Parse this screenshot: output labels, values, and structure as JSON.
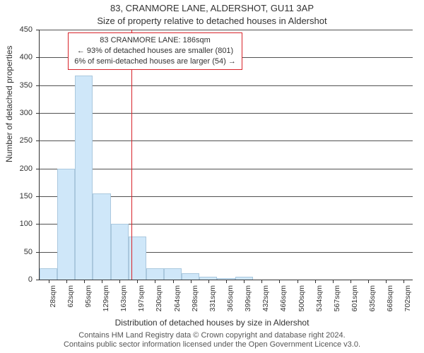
{
  "title": "83, CRANMORE LANE, ALDERSHOT, GU11 3AP",
  "subtitle": "Size of property relative to detached houses in Aldershot",
  "ylabel": "Number of detached properties",
  "xlabel": "Distribution of detached houses by size in Aldershot",
  "caption_line1": "Contains HM Land Registry data © Crown copyright and database right 2024.",
  "caption_line2": "Contains public sector information licensed under the Open Government Licence v3.0.",
  "chart": {
    "type": "histogram",
    "ylim": [
      0,
      450
    ],
    "yticks": [
      0,
      50,
      100,
      150,
      200,
      250,
      300,
      350,
      400,
      450
    ],
    "categories": [
      "28sqm",
      "62sqm",
      "95sqm",
      "129sqm",
      "163sqm",
      "197sqm",
      "230sqm",
      "264sqm",
      "298sqm",
      "331sqm",
      "365sqm",
      "399sqm",
      "432sqm",
      "466sqm",
      "500sqm",
      "534sqm",
      "567sqm",
      "601sqm",
      "635sqm",
      "668sqm",
      "702sqm"
    ],
    "values": [
      20,
      200,
      368,
      155,
      100,
      78,
      20,
      20,
      12,
      5,
      2,
      5,
      0,
      0,
      0,
      0,
      0,
      0,
      0,
      0,
      0
    ],
    "bar_fill": "#cfe7f9",
    "bar_stroke": "#aac8de",
    "grid_color": "#333333",
    "axis_color": "#333333",
    "background_color": "#ffffff",
    "bar_width_ratio": 1.0,
    "reference": {
      "position_sqm": 186,
      "line_color": "#d8232a"
    },
    "annotation": {
      "border_color": "#d8232a",
      "line1": "83 CRANMORE LANE: 186sqm",
      "line2": "← 93% of detached houses are smaller (801)",
      "line3": "6% of semi-detached houses are larger (54) →"
    },
    "title_fontsize": 13,
    "label_fontsize": 12,
    "tick_fontsize": 11
  }
}
